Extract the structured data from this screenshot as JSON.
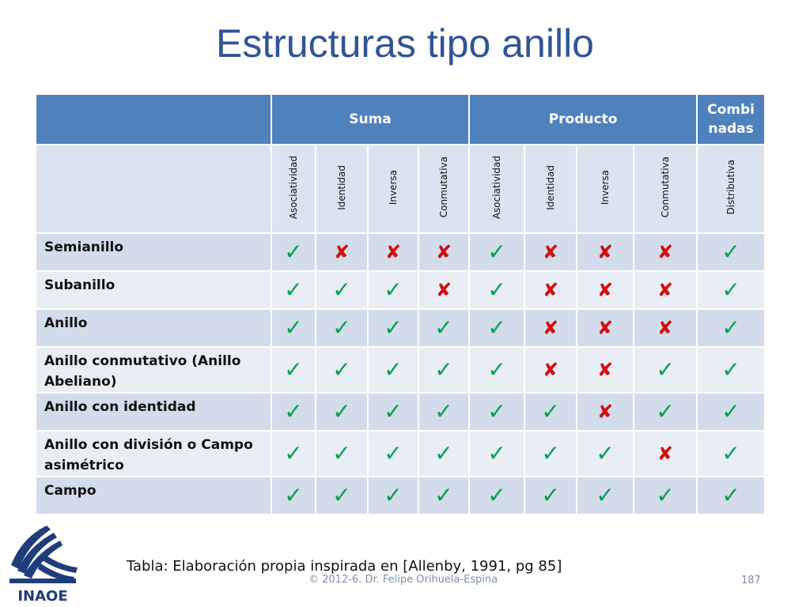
{
  "title": "Estructuras tipo anillo",
  "groups": {
    "suma": "Suma",
    "producto": "Producto",
    "combinadas": "Combi nadas"
  },
  "columns": [
    "Asociatividad",
    "Identidad",
    "Inversa",
    "Conmutativa",
    "Asociatividad",
    "Identidad",
    "Inversa",
    "Conmutativa",
    "Distributiva"
  ],
  "rows": [
    {
      "label": "Semianillo",
      "marks": [
        1,
        0,
        0,
        0,
        1,
        0,
        0,
        0,
        1
      ]
    },
    {
      "label": "Subanillo",
      "marks": [
        1,
        1,
        1,
        0,
        1,
        0,
        0,
        0,
        1
      ]
    },
    {
      "label": "Anillo",
      "marks": [
        1,
        1,
        1,
        1,
        1,
        0,
        0,
        0,
        1
      ]
    },
    {
      "label": "Anillo conmutativo (Anillo Abeliano)",
      "marks": [
        1,
        1,
        1,
        1,
        1,
        0,
        0,
        1,
        1
      ]
    },
    {
      "label": "Anillo con identidad",
      "marks": [
        1,
        1,
        1,
        1,
        1,
        1,
        0,
        1,
        1
      ]
    },
    {
      "label": "Anillo con división o Campo asimétrico",
      "marks": [
        1,
        1,
        1,
        1,
        1,
        1,
        1,
        0,
        1
      ]
    },
    {
      "label": "Campo",
      "marks": [
        1,
        1,
        1,
        1,
        1,
        1,
        1,
        1,
        1
      ]
    }
  ],
  "icons": {
    "yes": "check-icon",
    "no": "cross-icon",
    "logo": "inaoe-logo"
  },
  "colors": {
    "title": "#2f5597",
    "header": "#4f81bd",
    "check": "#00a050",
    "cross": "#d01010"
  },
  "logo_text": "INAOE",
  "caption": "Tabla: Elaboración propia inspirada en [Allenby, 1991, pg 85]",
  "footer": "© 2012-6. Dr. Felipe Orihuela-Espina",
  "page_number": "187"
}
